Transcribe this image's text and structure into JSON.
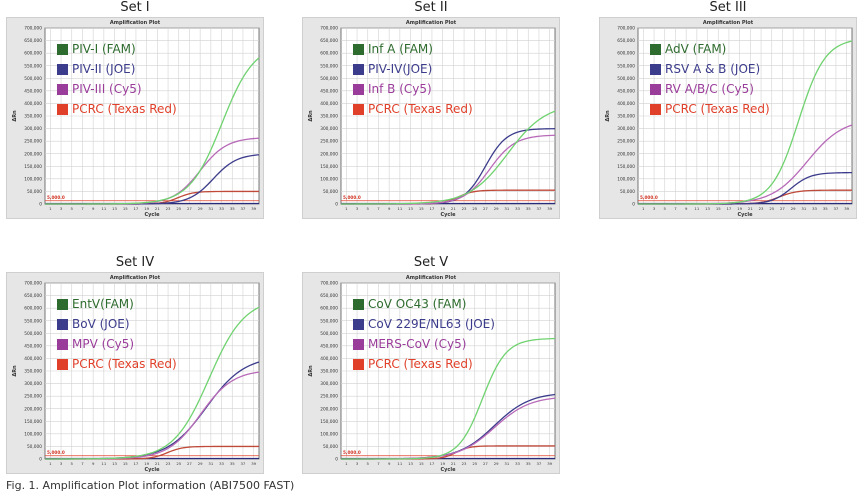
{
  "plot_heading": "Amplification Plot",
  "y_axis_label": "ΔRn",
  "x_axis_label": "Cycle",
  "y_ticks": [
    "700,000",
    "650,000",
    "600,000",
    "550,000",
    "500,000",
    "450,000",
    "400,000",
    "350,000",
    "300,000",
    "250,000",
    "200,000",
    "150,000",
    "100,000",
    "50,000",
    "0"
  ],
  "x_ticks": [
    "1",
    "3",
    "5",
    "7",
    "9",
    "11",
    "13",
    "15",
    "17",
    "19",
    "21",
    "23",
    "25",
    "27",
    "29",
    "31",
    "33",
    "35",
    "37",
    "39"
  ],
  "threshold_label": "5,000.0",
  "colors": {
    "fam": "#2e6b2e",
    "joe": "#3c3c8c",
    "cy5": "#9a3d9a",
    "texas": "#e0402a",
    "green_curve": "#6fd26f",
    "blue_curve": "#3c3c8c",
    "purple_curve": "#b86ab8",
    "red_curve": "#c04a3a"
  },
  "caption": "Fig. 1. Amplification Plot information (ABI7500 FAST)",
  "chart_data": [
    {
      "type": "line",
      "set_title": "Set I",
      "title": "Amplification Plot",
      "xlabel": "Cycle",
      "ylabel": "ΔRn",
      "xlim": [
        0,
        40
      ],
      "ylim": [
        0,
        700000
      ],
      "grid": true,
      "threshold": 5000,
      "series": [
        {
          "name": "PIV-I (FAM)",
          "ct": 27,
          "plateau": 640000,
          "k": 0.33
        },
        {
          "name": "PIV-II (JOE)",
          "ct": 27,
          "plateau": 200000,
          "k": 0.45
        },
        {
          "name": "PIV-III (Cy5)",
          "ct": 24,
          "plateau": 265000,
          "k": 0.4
        },
        {
          "name": "PCRC (Texas Red)",
          "ct": 22,
          "plateau": 50000,
          "k": 0.7
        }
      ]
    },
    {
      "type": "line",
      "set_title": "Set II",
      "title": "Amplification Plot",
      "xlabel": "Cycle",
      "ylabel": "ΔRn",
      "xlim": [
        0,
        40
      ],
      "ylim": [
        0,
        700000
      ],
      "grid": true,
      "threshold": 5000,
      "series": [
        {
          "name": "Inf A (FAM)",
          "ct": 24,
          "plateau": 400000,
          "k": 0.28
        },
        {
          "name": "PIV-IV(JOE)",
          "ct": 23,
          "plateau": 300000,
          "k": 0.5
        },
        {
          "name": "Inf B (Cy5)",
          "ct": 23,
          "plateau": 275000,
          "k": 0.42
        },
        {
          "name": "PCRC (Texas Red)",
          "ct": 19,
          "plateau": 55000,
          "k": 0.7
        }
      ]
    },
    {
      "type": "line",
      "set_title": "Set III",
      "title": "Amplification Plot",
      "xlabel": "Cycle",
      "ylabel": "ΔRn",
      "xlim": [
        0,
        40
      ],
      "ylim": [
        0,
        700000
      ],
      "grid": true,
      "threshold": 5000,
      "series": [
        {
          "name": "AdV (FAM)",
          "ct": 25,
          "plateau": 660000,
          "k": 0.4
        },
        {
          "name": "RSV A & B (JOE)",
          "ct": 25,
          "plateau": 125000,
          "k": 0.55
        },
        {
          "name": "RV A/B/C (Cy5)",
          "ct": 25,
          "plateau": 340000,
          "k": 0.3
        },
        {
          "name": "PCRC (Texas Red)",
          "ct": 23,
          "plateau": 55000,
          "k": 0.6
        }
      ]
    },
    {
      "type": "line",
      "set_title": "Set IV",
      "title": "Amplification Plot",
      "xlabel": "Cycle",
      "ylabel": "ΔRn",
      "xlim": [
        0,
        40
      ],
      "ylim": [
        0,
        700000
      ],
      "grid": true,
      "threshold": 5000,
      "series": [
        {
          "name": "EntV(FAM)",
          "ct": 24,
          "plateau": 640000,
          "k": 0.3
        },
        {
          "name": "BoV (JOE)",
          "ct": 23,
          "plateau": 410000,
          "k": 0.28
        },
        {
          "name": "MPV (Cy5)",
          "ct": 23,
          "plateau": 355000,
          "k": 0.33
        },
        {
          "name": "PCRC (Texas Red)",
          "ct": 20,
          "plateau": 50000,
          "k": 0.7
        }
      ]
    },
    {
      "type": "line",
      "set_title": "Set V",
      "title": "Amplification Plot",
      "xlabel": "Cycle",
      "ylabel": "ΔRn",
      "xlim": [
        0,
        40
      ],
      "ylim": [
        0,
        700000
      ],
      "grid": true,
      "threshold": 5000,
      "series": [
        {
          "name": "CoV OC43 (FAM)",
          "ct": 22,
          "plateau": 480000,
          "k": 0.45
        },
        {
          "name": "CoV 229E/NL63 (JOE)",
          "ct": 22,
          "plateau": 265000,
          "k": 0.3
        },
        {
          "name": "MERS-CoV (Cy5)",
          "ct": 22,
          "plateau": 250000,
          "k": 0.3
        },
        {
          "name": "PCRC (Texas Red)",
          "ct": 19,
          "plateau": 52000,
          "k": 0.8
        }
      ]
    }
  ]
}
